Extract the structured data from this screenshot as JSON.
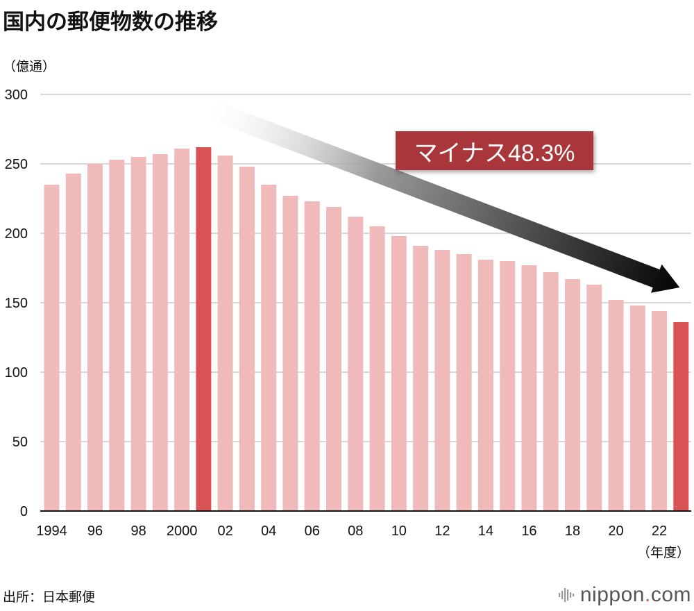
{
  "chart_data": {
    "type": "bar",
    "title": "国内の郵便物数の推移",
    "ylabel": "（億通）",
    "xlabel": "（年度）",
    "ylim": [
      0,
      300
    ],
    "yticks": [
      0,
      50,
      100,
      150,
      200,
      250,
      300
    ],
    "grid": true,
    "categories": [
      "1994",
      "1995",
      "1996",
      "1997",
      "1998",
      "1999",
      "2000",
      "2001",
      "2002",
      "2003",
      "2004",
      "2005",
      "2006",
      "2007",
      "2008",
      "2009",
      "2010",
      "2011",
      "2012",
      "2013",
      "2014",
      "2015",
      "2016",
      "2017",
      "2018",
      "2019",
      "2020",
      "2021",
      "2022",
      "2023"
    ],
    "tick_labels": [
      "1994",
      "",
      "96",
      "",
      "98",
      "",
      "2000",
      "",
      "02",
      "",
      "04",
      "",
      "06",
      "",
      "08",
      "",
      "10",
      "",
      "12",
      "",
      "14",
      "",
      "16",
      "",
      "18",
      "",
      "20",
      "",
      "22",
      ""
    ],
    "values": [
      235,
      243,
      250,
      253,
      255,
      257,
      261,
      262,
      256,
      248,
      235,
      227,
      223,
      219,
      212,
      205,
      198,
      191,
      188,
      185,
      181,
      180,
      177,
      172,
      167,
      163,
      152,
      148,
      144,
      136
    ],
    "highlight_indices": [
      7,
      29
    ],
    "colors": {
      "bar": "#f0babb",
      "highlight": "#d95355",
      "grid": "#cccccc",
      "axis": "#111111",
      "callout_bg": "#a8363a",
      "callout_text": "#ffffff",
      "arrow_light": "#ffffff",
      "arrow_dark": "#000000"
    },
    "annotation": {
      "text": "マイナス48.3%",
      "arrow_from_category": "2001",
      "arrow_to_category": "2023"
    }
  },
  "source": "出所：日本郵便",
  "brand": {
    "name": "nippon",
    "dot": ".",
    "tld": "com",
    "logo_icon": "sound-bars-icon"
  }
}
